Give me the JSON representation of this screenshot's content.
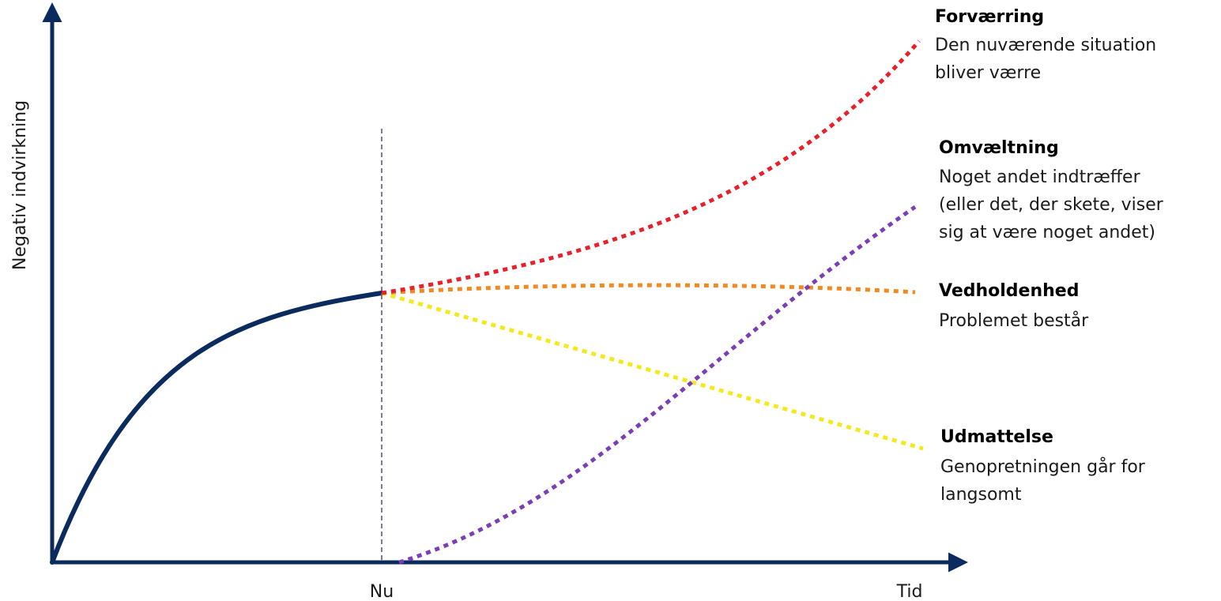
{
  "axes": {
    "y_label": "Negativ indvirkning",
    "x_tick_now": "Nu",
    "x_label": "Tid",
    "axis_color": "#0b2a5e"
  },
  "history_curve": {
    "color": "#0b2a5e"
  },
  "scenarios": [
    {
      "key": "forvaerring",
      "title": "Forværring",
      "description": [
        "Den nuværende situation",
        "bliver værre"
      ],
      "color": "#e8202a"
    },
    {
      "key": "omvaeltning",
      "title": "Omvæltning",
      "description": [
        "Noget andet indtræffer",
        "(eller det, der skete, viser",
        "sig at være noget andet)"
      ],
      "color": "#7b3fb5"
    },
    {
      "key": "vedholdenhed",
      "title": "Vedholdenhed",
      "description": [
        "Problemet består"
      ],
      "color": "#f4891f"
    },
    {
      "key": "udmattelse",
      "title": "Udmattelse",
      "description": [
        "Genopretningen går for",
        "langsomt"
      ],
      "color": "#f2ea1c"
    }
  ]
}
